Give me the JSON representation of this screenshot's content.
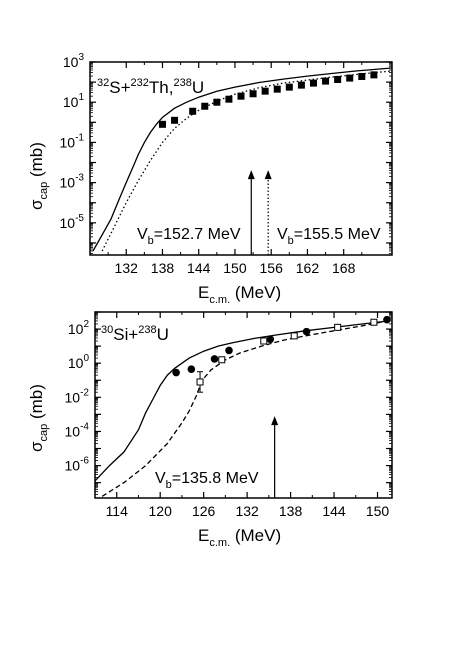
{
  "chart_data": [
    {
      "type": "scatter",
      "title": "",
      "system": {
        "t1": "32",
        "t2": "S+",
        "t3": "232",
        "t4": "Th,",
        "t5": "238",
        "t6": "U"
      },
      "xlabel": {
        "main": "E",
        "sub": "c.m.",
        "unit": " (MeV)"
      },
      "ylabel": {
        "main": "σ",
        "sub": "cap",
        "unit": " (mb)"
      },
      "xlim": [
        126,
        176
      ],
      "ylim_log10": [
        -6.6,
        3
      ],
      "xticks": [
        132,
        138,
        144,
        150,
        156,
        162,
        168
      ],
      "yticks": [
        {
          "base": "10",
          "exp": "-5",
          "value": -5
        },
        {
          "base": "10",
          "exp": "-3",
          "value": -3
        },
        {
          "base": "10",
          "exp": "-1",
          "value": -1
        },
        {
          "base": "10",
          "exp": "1",
          "value": 1
        },
        {
          "base": "10",
          "exp": "3",
          "value": 3
        }
      ],
      "series": [
        {
          "style": "solid",
          "x": [
            126.5,
            128,
            129.5,
            131,
            132,
            133,
            134,
            135,
            136,
            137,
            138,
            140,
            142,
            144,
            147,
            150,
            154,
            158,
            162,
            166,
            170,
            174,
            176
          ],
          "log10y": [
            -6.4,
            -5.6,
            -4.8,
            -3.7,
            -3.0,
            -2.3,
            -1.6,
            -1.0,
            -0.5,
            -0.1,
            0.25,
            0.7,
            1.0,
            1.25,
            1.55,
            1.75,
            1.98,
            2.15,
            2.3,
            2.43,
            2.55,
            2.65,
            2.7
          ]
        },
        {
          "style": "dotted",
          "x": [
            128,
            130,
            132,
            134,
            136,
            138,
            140,
            142,
            144,
            147,
            150,
            154,
            158,
            162,
            166,
            170,
            174,
            176
          ],
          "log10y": [
            -6.4,
            -5.2,
            -4.0,
            -2.9,
            -1.9,
            -1.0,
            -0.3,
            0.2,
            0.6,
            1.05,
            1.4,
            1.72,
            1.95,
            2.1,
            2.25,
            2.38,
            2.5,
            2.55
          ]
        },
        {
          "style": "square-filled",
          "x": [
            138,
            140,
            143,
            145,
            147,
            149,
            151,
            153,
            155,
            157,
            159,
            161,
            163,
            165,
            167,
            169,
            171,
            173
          ],
          "log10y": [
            -0.1,
            0.1,
            0.55,
            0.8,
            1.0,
            1.15,
            1.3,
            1.42,
            1.55,
            1.65,
            1.75,
            1.85,
            1.95,
            2.05,
            2.13,
            2.2,
            2.28,
            2.36
          ]
        }
      ],
      "barriers": [
        {
          "x": 152.7,
          "style": "solid",
          "prefix": "V",
          "sub": "b",
          "text": "=152.7 MeV"
        },
        {
          "x": 155.5,
          "style": "dotted",
          "prefix": "V",
          "sub": "b",
          "text": "=155.5 MeV"
        }
      ]
    },
    {
      "type": "scatter",
      "title": "",
      "system": {
        "t1": "30",
        "t2": "Si+",
        "t3": "238",
        "t4": "U"
      },
      "xlabel": {
        "main": "E",
        "sub": "c.m.",
        "unit": " (MeV)"
      },
      "ylabel": {
        "main": "σ",
        "sub": "cap",
        "unit": " (mb)"
      },
      "xlim": [
        111,
        152
      ],
      "ylim_log10": [
        -7.9,
        3
      ],
      "xticks": [
        114,
        120,
        126,
        132,
        138,
        144,
        150
      ],
      "yticks": [
        {
          "base": "10",
          "exp": "-6",
          "value": -6
        },
        {
          "base": "10",
          "exp": "-4",
          "value": -4
        },
        {
          "base": "10",
          "exp": "-2",
          "value": -2
        },
        {
          "base": "10",
          "exp": "0",
          "value": 0
        },
        {
          "base": "10",
          "exp": "2",
          "value": 2
        }
      ],
      "series": [
        {
          "style": "solid",
          "x": [
            111,
            113,
            115,
            117,
            118,
            119,
            120,
            121,
            122,
            124,
            126,
            128,
            130,
            133,
            136,
            140,
            144,
            148,
            151
          ],
          "log10y": [
            -6.9,
            -6.0,
            -5.2,
            -3.9,
            -2.9,
            -2.1,
            -1.3,
            -0.7,
            -0.3,
            0.3,
            0.7,
            1.0,
            1.2,
            1.45,
            1.65,
            1.9,
            2.1,
            2.3,
            2.45
          ]
        },
        {
          "style": "dashed",
          "x": [
            112,
            115,
            118,
            121,
            123,
            124,
            125,
            125.8,
            127,
            129,
            131,
            134,
            137,
            140,
            144,
            148,
            151
          ],
          "log10y": [
            -7.8,
            -7.0,
            -6.0,
            -4.7,
            -3.5,
            -2.8,
            -1.9,
            -1.0,
            -0.4,
            0.2,
            0.6,
            1.0,
            1.35,
            1.6,
            1.9,
            2.2,
            2.45
          ]
        },
        {
          "style": "circle-filled",
          "x": [
            122.2,
            124.3,
            127.5,
            129.5,
            135.2,
            140.2,
            151.3
          ],
          "log10y": [
            -0.55,
            -0.35,
            0.25,
            0.75,
            1.4,
            1.85,
            2.55
          ]
        },
        {
          "style": "square-open",
          "x": [
            125.5,
            128.5,
            134.3,
            138.5,
            144.5,
            149.5
          ],
          "log10y": [
            -1.1,
            0.2,
            1.3,
            1.6,
            2.1,
            2.4
          ],
          "err": [
            0.6,
            0,
            0,
            0,
            0,
            0
          ]
        }
      ],
      "barriers": [
        {
          "x": 135.8,
          "style": "solid",
          "prefix": "V",
          "sub": "b",
          "text": "=135.8 MeV"
        }
      ]
    }
  ]
}
